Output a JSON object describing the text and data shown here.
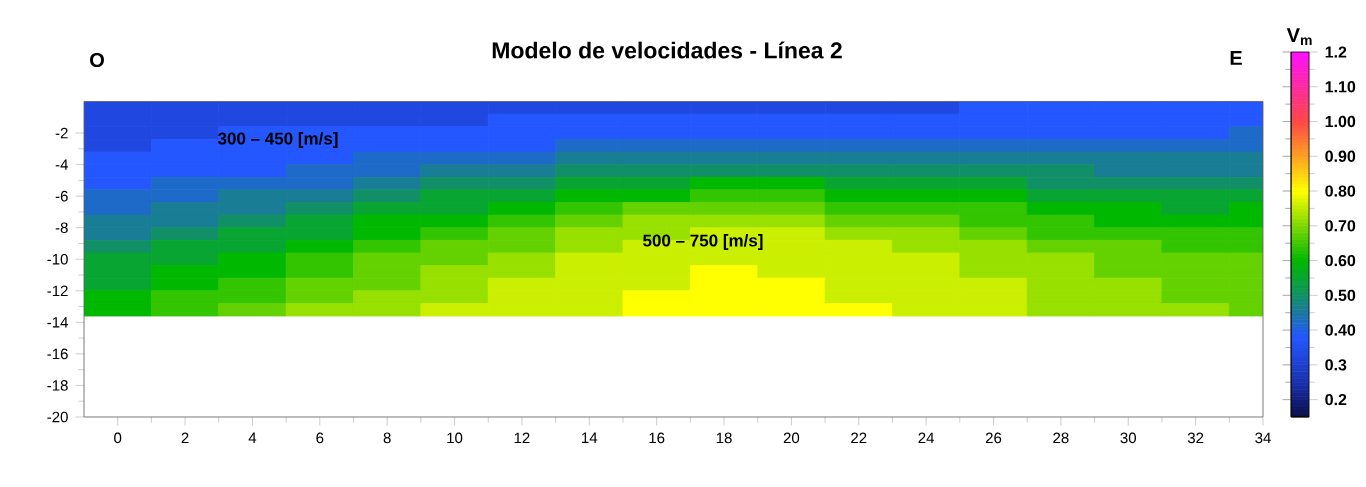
{
  "chart_data": {
    "type": "heatmap",
    "title": "Modelo de velocidades - Línea 2",
    "clabel": "V$_{m}$",
    "annotations": [
      "O",
      "E",
      "300 – 450 [m/s]",
      "500 – 750 [m/s]"
    ],
    "x": [
      0,
      2,
      4,
      6,
      8,
      10,
      12,
      14,
      16,
      18,
      20,
      22,
      24,
      26,
      28,
      30,
      32,
      34
    ],
    "y": [
      -0.4,
      -1.2,
      -2.0,
      -2.8,
      -3.6,
      -4.4,
      -5.2,
      -6.0,
      -6.8,
      -7.6,
      -8.4,
      -9.2,
      -10.0,
      -10.8,
      -11.6,
      -12.4,
      -13.2
    ],
    "cells": [
      [
        0.33,
        0.33,
        0.33,
        0.33,
        0.33,
        0.33,
        0.33,
        0.33,
        0.33,
        0.33,
        0.33,
        0.33,
        0.33,
        0.38,
        0.38,
        0.38,
        0.38,
        0.38
      ],
      [
        0.33,
        0.33,
        0.33,
        0.33,
        0.33,
        0.33,
        0.38,
        0.38,
        0.38,
        0.38,
        0.38,
        0.38,
        0.38,
        0.38,
        0.38,
        0.38,
        0.38,
        0.38
      ],
      [
        0.33,
        0.33,
        0.38,
        0.38,
        0.38,
        0.38,
        0.38,
        0.38,
        0.38,
        0.38,
        0.38,
        0.38,
        0.38,
        0.38,
        0.38,
        0.38,
        0.38,
        0.42
      ],
      [
        0.33,
        0.38,
        0.38,
        0.38,
        0.38,
        0.38,
        0.38,
        0.42,
        0.42,
        0.42,
        0.42,
        0.42,
        0.42,
        0.42,
        0.42,
        0.42,
        0.42,
        0.42
      ],
      [
        0.38,
        0.38,
        0.38,
        0.38,
        0.42,
        0.42,
        0.42,
        0.46,
        0.46,
        0.46,
        0.46,
        0.46,
        0.46,
        0.46,
        0.46,
        0.46,
        0.46,
        0.46
      ],
      [
        0.38,
        0.38,
        0.38,
        0.42,
        0.42,
        0.46,
        0.46,
        0.5,
        0.5,
        0.5,
        0.5,
        0.5,
        0.5,
        0.5,
        0.5,
        0.46,
        0.46,
        0.46
      ],
      [
        0.38,
        0.42,
        0.42,
        0.42,
        0.46,
        0.5,
        0.5,
        0.55,
        0.55,
        0.6,
        0.6,
        0.55,
        0.55,
        0.55,
        0.5,
        0.5,
        0.5,
        0.5
      ],
      [
        0.42,
        0.42,
        0.46,
        0.46,
        0.5,
        0.55,
        0.55,
        0.6,
        0.6,
        0.64,
        0.64,
        0.6,
        0.6,
        0.6,
        0.55,
        0.55,
        0.55,
        0.55
      ],
      [
        0.42,
        0.46,
        0.46,
        0.5,
        0.55,
        0.55,
        0.6,
        0.64,
        0.68,
        0.68,
        0.68,
        0.64,
        0.64,
        0.64,
        0.6,
        0.6,
        0.55,
        0.6
      ],
      [
        0.46,
        0.46,
        0.5,
        0.55,
        0.6,
        0.6,
        0.64,
        0.68,
        0.72,
        0.72,
        0.72,
        0.68,
        0.68,
        0.64,
        0.64,
        0.6,
        0.6,
        0.6
      ],
      [
        0.46,
        0.5,
        0.55,
        0.55,
        0.6,
        0.64,
        0.68,
        0.72,
        0.72,
        0.76,
        0.76,
        0.72,
        0.72,
        0.68,
        0.64,
        0.64,
        0.64,
        0.64
      ],
      [
        0.5,
        0.55,
        0.55,
        0.6,
        0.64,
        0.68,
        0.68,
        0.72,
        0.76,
        0.76,
        0.76,
        0.76,
        0.72,
        0.72,
        0.68,
        0.68,
        0.64,
        0.64
      ],
      [
        0.55,
        0.55,
        0.6,
        0.64,
        0.68,
        0.68,
        0.72,
        0.76,
        0.76,
        0.76,
        0.76,
        0.76,
        0.76,
        0.72,
        0.72,
        0.68,
        0.68,
        0.68
      ],
      [
        0.55,
        0.6,
        0.6,
        0.64,
        0.68,
        0.72,
        0.72,
        0.76,
        0.76,
        0.8,
        0.76,
        0.76,
        0.76,
        0.72,
        0.72,
        0.68,
        0.68,
        0.68
      ],
      [
        0.55,
        0.6,
        0.64,
        0.68,
        0.68,
        0.72,
        0.76,
        0.76,
        0.76,
        0.8,
        0.8,
        0.76,
        0.76,
        0.76,
        0.72,
        0.72,
        0.68,
        0.68
      ],
      [
        0.6,
        0.64,
        0.64,
        0.68,
        0.72,
        0.72,
        0.76,
        0.76,
        0.8,
        0.8,
        0.8,
        0.76,
        0.76,
        0.76,
        0.72,
        0.72,
        0.68,
        0.68
      ],
      [
        0.6,
        0.64,
        0.68,
        0.72,
        0.72,
        0.76,
        0.76,
        0.76,
        0.8,
        0.8,
        0.8,
        0.8,
        0.76,
        0.76,
        0.72,
        0.72,
        0.72,
        0.68
      ]
    ],
    "xlim": [
      -1,
      34
    ],
    "ylim": [
      -20,
      0
    ],
    "xticks": [
      0,
      2,
      4,
      6,
      8,
      10,
      12,
      14,
      16,
      18,
      20,
      22,
      24,
      26,
      28,
      30,
      32,
      34
    ],
    "yticks": [
      -20,
      -18,
      -16,
      -14,
      -12,
      -10,
      -8,
      -6,
      -4,
      -2
    ],
    "clim": [
      0.15,
      1.2
    ],
    "cticks": [
      0.2,
      0.3,
      {
        "value": 0.4,
        "label": "0.40"
      },
      {
        "value": 0.5,
        "label": "0.50"
      },
      {
        "value": 0.6,
        "label": "0.60"
      },
      {
        "value": 0.7,
        "label": "0.70"
      },
      {
        "value": 0.8,
        "label": "0.80"
      },
      {
        "value": 0.9,
        "label": "0.90"
      },
      {
        "value": 1.0,
        "label": "1.00"
      },
      {
        "value": 1.1,
        "label": "1.10"
      },
      1.2
    ]
  }
}
